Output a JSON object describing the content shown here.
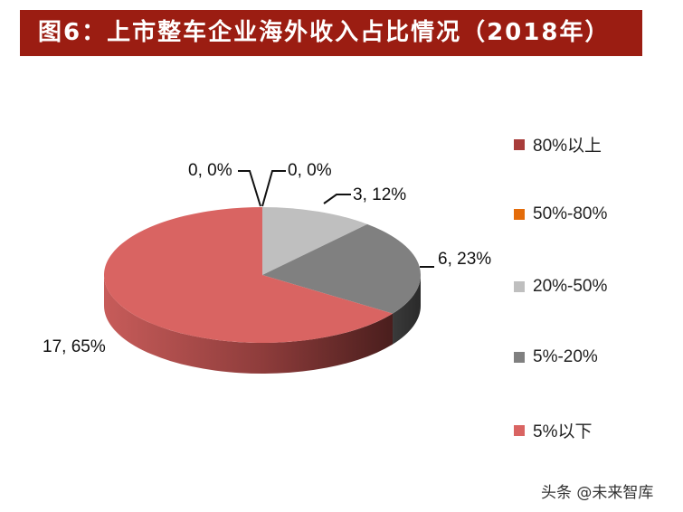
{
  "title": "图6：上市整车企业海外收入占比情况（2018年）",
  "watermark": "头条 @未来智库",
  "colors": {
    "title_bg": "#9b1d12"
  },
  "chart_data": {
    "type": "pie",
    "style": "3d",
    "title": "上市整车企业海外收入占比情况（2018年）",
    "categories": [
      "80%以上",
      "50%-80%",
      "20%-50%",
      "5%-20%",
      "5%以下"
    ],
    "values": [
      0,
      0,
      3,
      6,
      17
    ],
    "percentages": [
      0,
      0,
      12,
      23,
      65
    ],
    "colors": [
      "#a83c3a",
      "#e46c0a",
      "#bfbfbf",
      "#808080",
      "#d96462"
    ],
    "data_labels": [
      "0, 0%",
      "0, 0%",
      "3, 12%",
      "6, 23%",
      "17, 65%"
    ],
    "legend_position": "right"
  },
  "legend": [
    {
      "label": "80%以上",
      "color": "#a83c3a"
    },
    {
      "label": "50%-80%",
      "color": "#e46c0a"
    },
    {
      "label": "20%-50%",
      "color": "#bfbfbf"
    },
    {
      "label": "5%-20%",
      "color": "#808080"
    },
    {
      "label": "5%以下",
      "color": "#d96462"
    }
  ]
}
